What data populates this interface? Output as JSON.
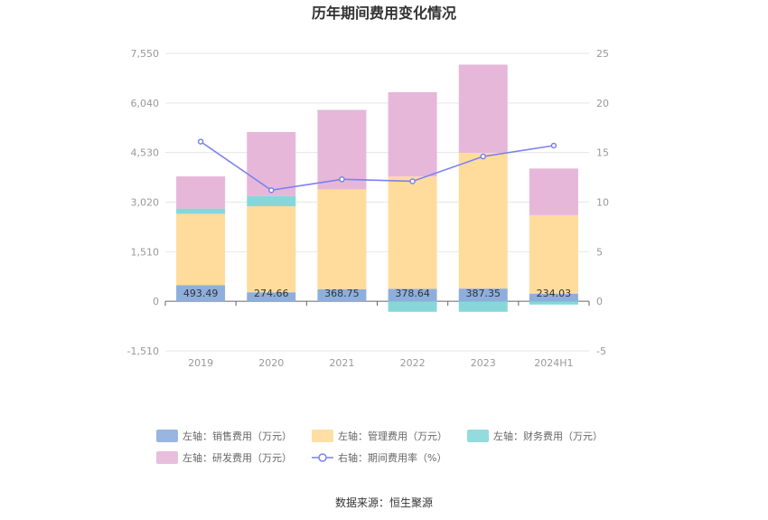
{
  "chart_data": {
    "type": "bar",
    "title": "历年期间费用变化情况",
    "categories": [
      "2019",
      "2020",
      "2021",
      "2022",
      "2023",
      "2024H1"
    ],
    "left_axis": {
      "ticks": [
        "7,550",
        "6,040",
        "4,530",
        "3,020",
        "1,510",
        "0",
        "-1,510"
      ],
      "ylim": [
        -1510,
        7550
      ]
    },
    "right_axis": {
      "ticks": [
        "25",
        "20",
        "15",
        "10",
        "5",
        "0",
        "-5"
      ],
      "ylim": [
        -5,
        25
      ]
    },
    "series": [
      {
        "name": "左轴：销售费用（万元）",
        "axis": "left",
        "stack": true,
        "color": "#8eaedd",
        "values": [
          493.49,
          274.66,
          368.75,
          378.64,
          387.35,
          234.03
        ],
        "labels": [
          "493.49",
          "274.66",
          "368.75",
          "378.64",
          "387.35",
          "234.03"
        ]
      },
      {
        "name": "左轴：管理费用（万元）",
        "axis": "left",
        "stack": true,
        "color": "#ffdb9c",
        "values": [
          2170,
          2620,
          3040,
          3420,
          4130,
          2390
        ]
      },
      {
        "name": "左轴：财务费用（万元）",
        "axis": "left",
        "stack": true,
        "color": "#87d7da",
        "values": [
          160,
          310,
          0,
          -320,
          -320,
          -100
        ]
      },
      {
        "name": "左轴：研发费用（万元）",
        "axis": "left",
        "stack": true,
        "color": "#e6b7d9",
        "values": [
          980,
          1950,
          2420,
          2570,
          2690,
          1420
        ]
      },
      {
        "name": "右轴：期间费用率（%）",
        "axis": "right",
        "type": "line",
        "color": "#7b82f0",
        "values": [
          16.1,
          11.2,
          12.3,
          12.1,
          14.6,
          15.7
        ]
      }
    ],
    "legend_position": "bottom",
    "grid": true
  },
  "source": "数据来源：恒生聚源"
}
